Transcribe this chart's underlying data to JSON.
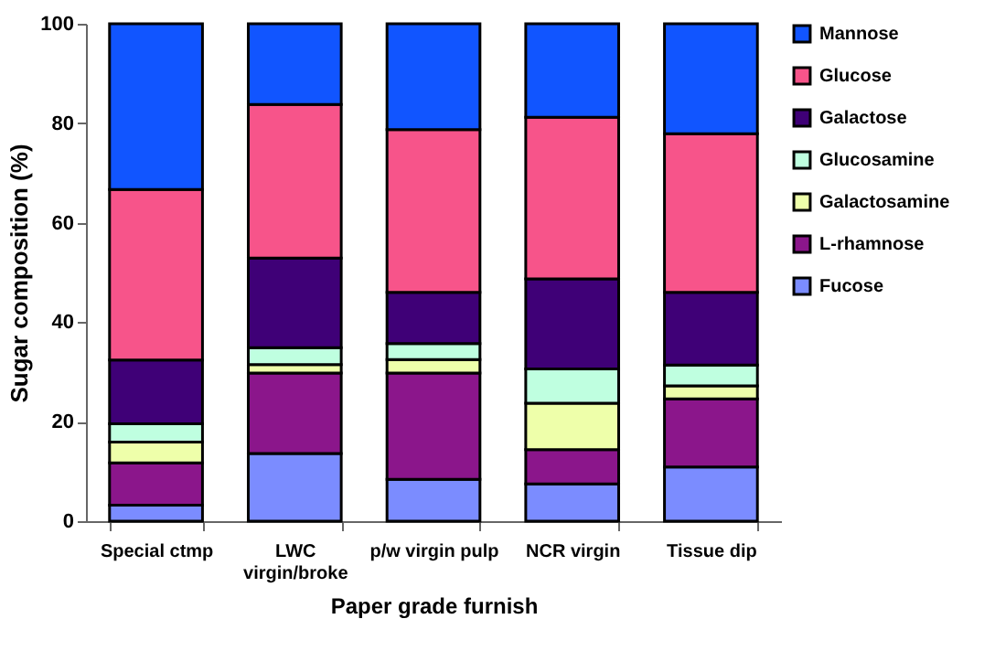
{
  "chart_data": {
    "type": "bar",
    "stacked": true,
    "xlabel": "Paper grade furnish",
    "ylabel": "Sugar composition (%)",
    "categories": [
      "Special ctmp",
      "LWC virgin/broke",
      "p/w virgin pulp",
      "NCR virgin",
      "Tissue dip"
    ],
    "ylim": [
      0,
      100
    ],
    "yticks": [
      0,
      20,
      40,
      60,
      80,
      100
    ],
    "grid": false,
    "legend": "right",
    "series": [
      {
        "name": "Fucose",
        "color": "#7b8cff",
        "values": [
          3.2,
          13.6,
          8.4,
          7.5,
          10.9
        ]
      },
      {
        "name": "L-rhamnose",
        "color": "#8b168b",
        "values": [
          8.5,
          16.2,
          21.4,
          6.9,
          13.7
        ]
      },
      {
        "name": "Galactosamine",
        "color": "#eeffaa",
        "values": [
          4.2,
          1.7,
          2.7,
          9.3,
          2.6
        ]
      },
      {
        "name": "Glucosamine",
        "color": "#bfffe0",
        "values": [
          3.7,
          3.4,
          3.2,
          6.9,
          4.2
        ]
      },
      {
        "name": "Galactose",
        "color": "#3f0077",
        "values": [
          12.8,
          18.0,
          10.3,
          18.1,
          14.6
        ]
      },
      {
        "name": "Glucose",
        "color": "#f7548a",
        "values": [
          34.3,
          30.9,
          32.7,
          32.5,
          31.9
        ]
      },
      {
        "name": "Mannose",
        "color": "#1155ff",
        "values": [
          33.3,
          16.2,
          21.3,
          18.8,
          22.1
        ]
      }
    ]
  }
}
